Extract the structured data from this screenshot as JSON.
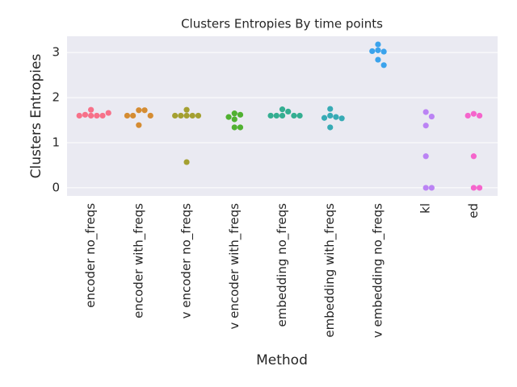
{
  "chart_data": {
    "type": "swarm",
    "title": "Clusters Entropies By time points",
    "xlabel": "Method",
    "ylabel": "Clusters Entropies",
    "categories": [
      "encoder no_freqs",
      "encoder with_freqs",
      "v encoder no_freqs",
      "v encoder with_freqs",
      "embedding no_freqs",
      "embedding with_freqs",
      "v embedding no_freqs",
      "kl",
      "ed"
    ],
    "colors": [
      "#f77189",
      "#d58c32",
      "#a4a031",
      "#50b131",
      "#34ae91",
      "#37abb5",
      "#3ba3ec",
      "#bb83f4",
      "#f565cc"
    ],
    "values": [
      [
        1.6,
        1.6,
        1.62,
        1.6,
        1.6,
        1.66,
        1.73
      ],
      [
        1.72,
        1.72,
        1.6,
        1.6,
        1.6,
        1.39
      ],
      [
        1.73,
        1.6,
        1.6,
        1.6,
        1.6,
        1.6,
        0.57
      ],
      [
        1.65,
        1.62,
        1.57,
        1.52,
        1.34,
        1.34
      ],
      [
        1.74,
        1.69,
        1.6,
        1.6,
        1.6,
        1.6,
        1.6
      ],
      [
        1.75,
        1.6,
        1.57,
        1.55,
        1.54,
        1.34
      ],
      [
        3.18,
        3.05,
        3.02,
        3.03,
        2.84,
        2.72
      ],
      [
        1.68,
        1.58,
        1.38,
        0.7,
        0,
        0
      ],
      [
        1.64,
        1.6,
        1.6,
        0.7,
        0,
        0
      ]
    ],
    "ylim": [
      -0.18,
      3.36
    ],
    "yticks": [
      0,
      1,
      2,
      3
    ],
    "grid": true
  }
}
